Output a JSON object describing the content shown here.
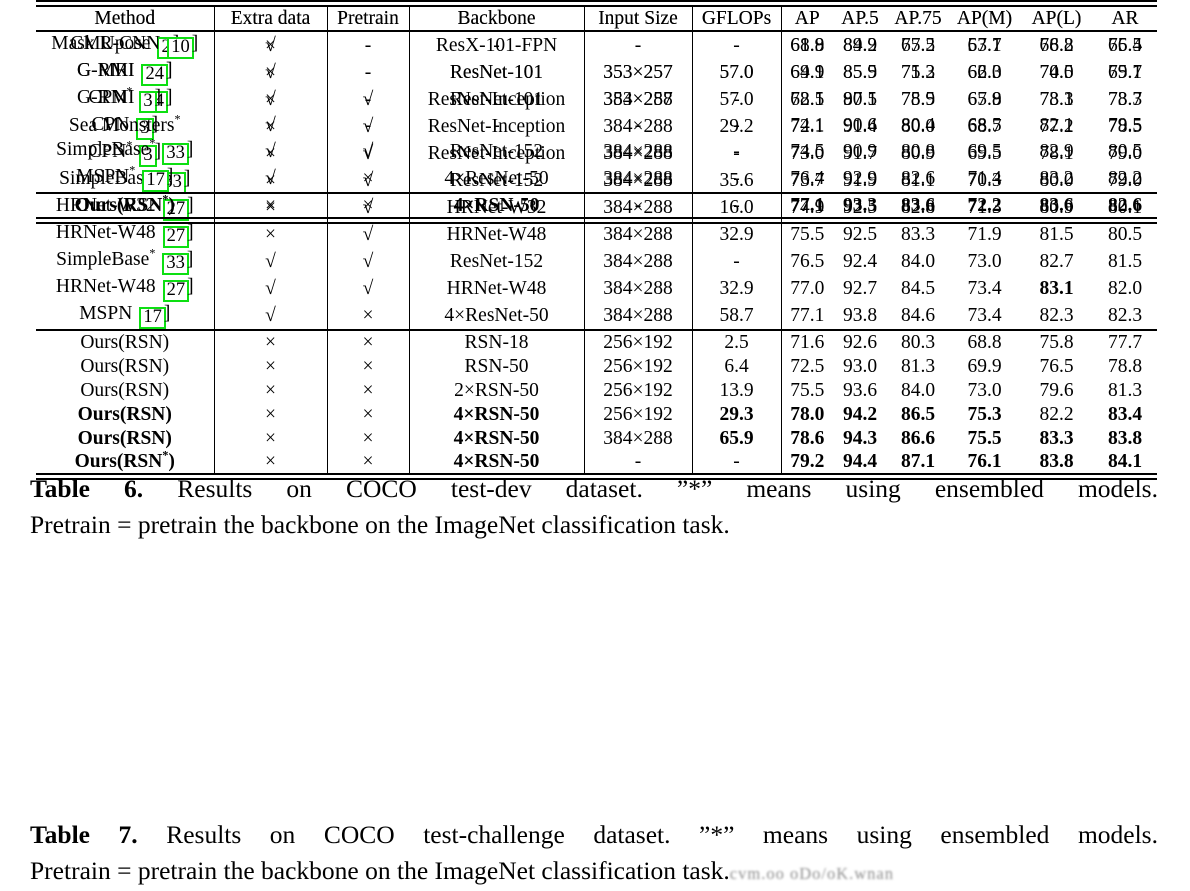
{
  "colors": {
    "cite_box_green": "#0ddf12",
    "text": "#000000",
    "background": "#ffffff",
    "watermark_gray": "#8f8f8f"
  },
  "symbols": {
    "yes": "√",
    "no": "×",
    "none": "-"
  },
  "watermark": "cvm.oo oDo/oK.wnan",
  "tables": [
    {
      "name": "coco-test-dev-results",
      "columns": [
        "Method",
        "Extra data",
        "Pretrain",
        "Backbone",
        "Input Size",
        "GFLOPs",
        "AP",
        "AP.5",
        "AP.75",
        "AP(M)",
        "AP(L)",
        "AR"
      ],
      "rows": [
        {
          "m1": "CMUpose",
          "cite": "2",
          "extra": "×",
          "pre": "-",
          "bk": "-",
          "in": "-",
          "g": "-",
          "x": [
            "61.8",
            "84.9",
            "67.5",
            "57.1",
            "68.2",
            "66.5"
          ]
        },
        {
          "m1": "G-MRI",
          "cite": "24",
          "extra": "×",
          "pre": "-",
          "bk": "ResNet-101",
          "in": "353×257",
          "g": "57.0",
          "x": [
            "64.9",
            "85.5",
            "71.3",
            "62.3",
            "70.0",
            "69.7"
          ]
        },
        {
          "m1": "G-RMI",
          "cite": "24",
          "extra": "√",
          "pre": "-",
          "bk": "ResNet-101",
          "in": "353×257",
          "g": "57.0",
          "x": [
            "68.5",
            "87.1",
            "75.5",
            "65.8",
            "73.3",
            "73.3"
          ]
        },
        {
          "m1": "CPN",
          "cite": "3",
          "extra": "×",
          "pre": "√",
          "bk": "ResNet-Inception",
          "in": "384×288",
          "g": "29.2",
          "x": [
            "72.1",
            "91.4",
            "80.0",
            "68.7",
            "77.2",
            "78.5"
          ]
        },
        {
          "m1": "CPN",
          "sup": "*",
          "cite": "3",
          "extra": "×",
          "pre": "√",
          "bk": "ResNet-Inception",
          "in": "384×288",
          "g": "-",
          "x": [
            "73.0",
            "91.7",
            "80.9",
            "69.5",
            "78.1",
            "79.0"
          ]
        },
        {
          "m1": "SimpleBase",
          "cite": "33",
          "extra": "×",
          "pre": "√",
          "bk": "ResNet-152",
          "in": "384×288",
          "g": "35.6",
          "x": [
            "73.7",
            "91.9",
            "81.1",
            "70.3",
            "80.0",
            "79.0"
          ]
        },
        {
          "m1": "HRNet-W32",
          "cite": "27",
          "extra": "×",
          "pre": "√",
          "bk": "HRNet-W32",
          "in": "384×288",
          "g": "16.0",
          "x": [
            "74.9",
            "92.5",
            "82.8",
            "71.3",
            "80.9",
            "80.1"
          ]
        },
        {
          "m1": "HRNet-W48",
          "cite": "27",
          "extra": "×",
          "pre": "√",
          "bk": "HRNet-W48",
          "in": "384×288",
          "g": "32.9",
          "x": [
            "75.5",
            "92.5",
            "83.3",
            "71.9",
            "81.5",
            "80.5"
          ]
        },
        {
          "m1": "SimpleBase",
          "sup": "*",
          "cite": "33",
          "extra": "√",
          "pre": "√",
          "bk": "ResNet-152",
          "in": "384×288",
          "g": "-",
          "x": [
            "76.5",
            "92.4",
            "84.0",
            "73.0",
            "82.7",
            "81.5"
          ]
        },
        {
          "m1": "HRNet-W48",
          "cite": "27",
          "extra": "√",
          "pre": "√",
          "bk": "HRNet-W48",
          "in": "384×288",
          "g": "32.9",
          "x": [
            "77.0",
            "92.7",
            "84.5",
            "73.4",
            "83.1",
            "82.0"
          ],
          "b": {
            "x": [
              0,
              0,
              0,
              0,
              1,
              0
            ]
          }
        },
        {
          "m1": "MSPN",
          "cite": "17",
          "extra": "√",
          "pre": "×",
          "bk": "4×ResNet-50",
          "in": "384×288",
          "g": "58.7",
          "x": [
            "77.1",
            "93.8",
            "84.6",
            "73.4",
            "82.3",
            "82.3"
          ]
        },
        {
          "m1": "Ours(RSN)",
          "extra": "×",
          "pre": "×",
          "bk": "RSN-18",
          "in": "256×192",
          "g": "2.5",
          "x": [
            "71.6",
            "92.6",
            "80.3",
            "68.8",
            "75.8",
            "77.7"
          ],
          "sep": true
        },
        {
          "m1": "Ours(RSN)",
          "extra": "×",
          "pre": "×",
          "bk": "RSN-50",
          "in": "256×192",
          "g": "6.4",
          "x": [
            "72.5",
            "93.0",
            "81.3",
            "69.9",
            "76.5",
            "78.8"
          ]
        },
        {
          "m1": "Ours(RSN)",
          "extra": "×",
          "pre": "×",
          "bk": "2×RSN-50",
          "in": "256×192",
          "g": "13.9",
          "x": [
            "75.5",
            "93.6",
            "84.0",
            "73.0",
            "79.6",
            "81.3"
          ]
        },
        {
          "m1": "Ours(RSN)",
          "extra": "×",
          "pre": "×",
          "bk": "4×RSN-50",
          "in": "256×192",
          "g": "29.3",
          "x": [
            "78.0",
            "94.2",
            "86.5",
            "75.3",
            "82.2",
            "83.4"
          ],
          "b": {
            "m": 1,
            "bk": 1,
            "g": 1,
            "x": [
              1,
              1,
              1,
              1,
              0,
              1
            ]
          }
        },
        {
          "m1": "Ours(RSN)",
          "extra": "×",
          "pre": "×",
          "bk": "4×RSN-50",
          "in": "384×288",
          "g": "65.9",
          "x": [
            "78.6",
            "94.3",
            "86.6",
            "75.5",
            "83.3",
            "83.8"
          ],
          "b": {
            "m": 1,
            "bk": 1,
            "g": 1,
            "x": [
              1,
              1,
              1,
              1,
              1,
              1
            ]
          }
        },
        {
          "m1": "Ours(RSN",
          "sup": "*",
          "m2": ")",
          "extra": "×",
          "pre": "×",
          "bk": "4×RSN-50",
          "in": "-",
          "g": "-",
          "x": [
            "79.2",
            "94.4",
            "87.1",
            "76.1",
            "83.8",
            "84.1"
          ],
          "b": {
            "m": 1,
            "bk": 1,
            "x": [
              1,
              1,
              1,
              1,
              1,
              1
            ]
          }
        }
      ],
      "caption": {
        "label": "Table 6.",
        "line1": "Results on COCO test-dev dataset. ”*” means using ensembled models.",
        "line2": "Pretrain = pretrain the backbone on the ImageNet classification task."
      }
    },
    {
      "name": "coco-test-challenge-results",
      "columns": [
        "Method",
        "Extra data",
        "Pretrain",
        "Backbone",
        "Input Size",
        "GFLOPs",
        "AP",
        "AP.5",
        "AP.75",
        "AP(M)",
        "AP(L)",
        "AR"
      ],
      "rows": [
        {
          "m1": "Mask R-CNN",
          "cite": "10",
          "extra": "√",
          "pre": "-",
          "bk": "ResX-101-FPN",
          "in": "-",
          "g": "-",
          "x": [
            "68.9",
            "89.2",
            "75.2",
            "63.7",
            "76.8",
            "75.4"
          ]
        },
        {
          "m1": "G-RMI",
          "cite": "24",
          "extra": "√",
          "pre": "-",
          "bk": "ResNet-101",
          "in": "353×257",
          "g": "57.0",
          "x": [
            "69.1",
            "85.9",
            "75.2",
            "66.0",
            "74.5",
            "75.1"
          ]
        },
        {
          "m1": "CPN",
          "sup": "*",
          "cite": "3",
          "extra": "×",
          "pre": "√",
          "bk": "ResNet-Inception",
          "in": "384×288",
          "g": "-",
          "x": [
            "72.1",
            "90.5",
            "78.9",
            "67.9",
            "78.1",
            "78.7"
          ]
        },
        {
          "m1": "Sea Monsters",
          "sup": "*",
          "extra": "√",
          "pre": "-",
          "bk": "-",
          "in": "-",
          "g": "-",
          "x": [
            "74.1",
            "90.6",
            "80.4",
            "68.5",
            "82.1",
            "79.5"
          ]
        },
        {
          "m1": "SimpleBase",
          "sup": "*",
          "cite": "33",
          "extra": "√",
          "pre": "√",
          "bk": "ResNet-152",
          "in": "384×288",
          "g": "-",
          "x": [
            "74.5",
            "90.9",
            "80.8",
            "69.5",
            "82.9",
            "80.5"
          ]
        },
        {
          "m1": "MSPN",
          "sup": "*",
          "cite": "17",
          "extra": "√",
          "pre": "×",
          "bk": "4×ResNet-50",
          "in": "384×288",
          "g": "-",
          "x": [
            "76.4",
            "92.9",
            "82.6",
            "71.4",
            "83.2",
            "82.2"
          ]
        },
        {
          "m1": "Ours(RSN",
          "sup": "*",
          "m2": ")",
          "extra": "×",
          "pre": "×",
          "bk": "4×RSN-50",
          "in": "-",
          "g": "-",
          "x": [
            "77.1",
            "93.3",
            "83.6",
            "72.2",
            "83.6",
            "82.6"
          ],
          "b": {
            "m": 1,
            "bk": 1,
            "x": [
              1,
              1,
              1,
              1,
              1,
              1
            ]
          },
          "sep": true
        }
      ],
      "caption": {
        "label": "Table 7.",
        "line1": "Results on COCO test-challenge dataset. ”*” means using ensembled models.",
        "line2": "Pretrain = pretrain the backbone on the ImageNet classification task."
      }
    }
  ]
}
